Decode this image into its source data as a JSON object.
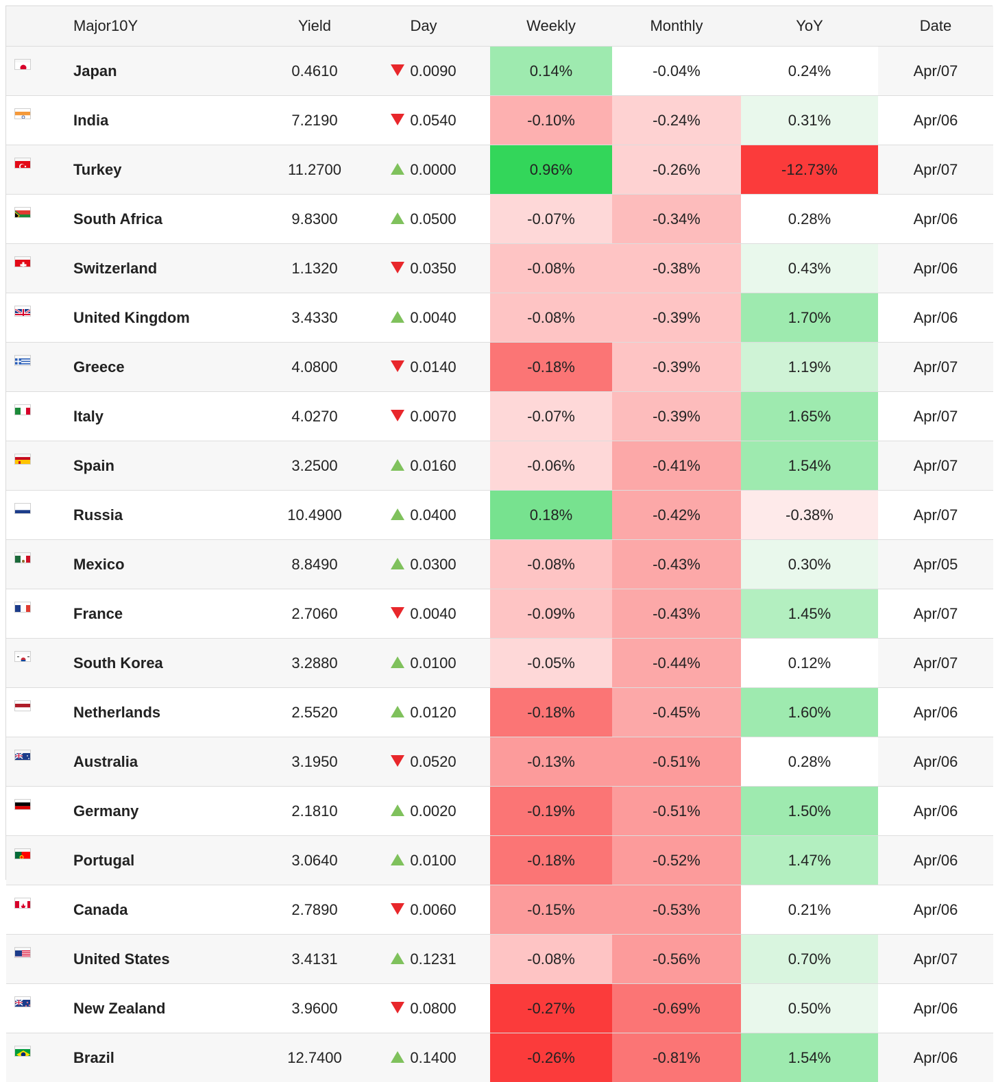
{
  "headers": [
    "",
    "Major10Y",
    "Yield",
    "Day",
    "Weekly",
    "Monthly",
    "YoY",
    "Date"
  ],
  "rows": [
    {
      "flag": "japan-flag-icon",
      "country": "Japan",
      "yield": "0.4610",
      "dir": "down",
      "day": "0.0090",
      "weekly": "0.14%",
      "weekly_bg": "#9eeaaf",
      "monthly": "-0.04%",
      "monthly_bg": "#ffffff",
      "yoy": "0.24%",
      "yoy_bg": "#ffffff"
    },
    {
      "flag": "india-flag-icon",
      "country": "India",
      "yield": "7.2190",
      "dir": "down",
      "day": "0.0540",
      "weekly": "-0.10%",
      "weekly_bg": "#fdb0b0",
      "monthly": "-0.24%",
      "monthly_bg": "#fed2d2",
      "yoy": "0.31%",
      "yoy_bg": "#e9f8ec"
    },
    {
      "flag": "turkey-flag-icon",
      "country": "Turkey",
      "yield": "11.2700",
      "dir": "up",
      "day": "0.0000",
      "weekly": "0.96%",
      "weekly_bg": "#33d65a",
      "monthly": "-0.26%",
      "monthly_bg": "#fed2d2",
      "yoy": "-12.73%",
      "yoy_bg": "#fb3b3b"
    },
    {
      "flag": "south-africa-flag-icon",
      "country": "South Africa",
      "yield": "9.8300",
      "dir": "up",
      "day": "0.0500",
      "weekly": "-0.07%",
      "weekly_bg": "#fed8d8",
      "monthly": "-0.34%",
      "monthly_bg": "#fdbcbc",
      "yoy": "0.28%",
      "yoy_bg": "#ffffff"
    },
    {
      "flag": "switzerland-flag-icon",
      "country": "Switzerland",
      "yield": "1.1320",
      "dir": "down",
      "day": "0.0350",
      "weekly": "-0.08%",
      "weekly_bg": "#fec4c4",
      "monthly": "-0.38%",
      "monthly_bg": "#fec4c4",
      "yoy": "0.43%",
      "yoy_bg": "#e9f8ec"
    },
    {
      "flag": "united-kingdom-flag-icon",
      "country": "United Kingdom",
      "yield": "3.4330",
      "dir": "up",
      "day": "0.0040",
      "weekly": "-0.08%",
      "weekly_bg": "#fec4c4",
      "monthly": "-0.39%",
      "monthly_bg": "#fec4c4",
      "yoy": "1.70%",
      "yoy_bg": "#9eeaaf"
    },
    {
      "flag": "greece-flag-icon",
      "country": "Greece",
      "yield": "4.0800",
      "dir": "down",
      "day": "0.0140",
      "weekly": "-0.18%",
      "weekly_bg": "#fb7575",
      "monthly": "-0.39%",
      "monthly_bg": "#fec4c4",
      "yoy": "1.19%",
      "yoy_bg": "#cff3d6"
    },
    {
      "flag": "italy-flag-icon",
      "country": "Italy",
      "yield": "4.0270",
      "dir": "down",
      "day": "0.0070",
      "weekly": "-0.07%",
      "weekly_bg": "#fed8d8",
      "monthly": "-0.39%",
      "monthly_bg": "#fdbcbc",
      "yoy": "1.65%",
      "yoy_bg": "#9eeaaf"
    },
    {
      "flag": "spain-flag-icon",
      "country": "Spain",
      "yield": "3.2500",
      "dir": "up",
      "day": "0.0160",
      "weekly": "-0.06%",
      "weekly_bg": "#fed8d8",
      "monthly": "-0.41%",
      "monthly_bg": "#fca8a8",
      "yoy": "1.54%",
      "yoy_bg": "#9eeaaf"
    },
    {
      "flag": "russia-flag-icon",
      "country": "Russia",
      "yield": "10.4900",
      "dir": "up",
      "day": "0.0400",
      "weekly": "0.18%",
      "weekly_bg": "#77e28f",
      "monthly": "-0.42%",
      "monthly_bg": "#fca8a8",
      "yoy": "-0.38%",
      "yoy_bg": "#feeaea"
    },
    {
      "flag": "mexico-flag-icon",
      "country": "Mexico",
      "yield": "8.8490",
      "dir": "up",
      "day": "0.0300",
      "weekly": "-0.08%",
      "weekly_bg": "#fec4c4",
      "monthly": "-0.43%",
      "monthly_bg": "#fca8a8",
      "yoy": "0.30%",
      "yoy_bg": "#e9f8ec"
    },
    {
      "flag": "france-flag-icon",
      "country": "France",
      "yield": "2.7060",
      "dir": "down",
      "day": "0.0040",
      "weekly": "-0.09%",
      "weekly_bg": "#fec4c4",
      "monthly": "-0.43%",
      "monthly_bg": "#fca8a8",
      "yoy": "1.45%",
      "yoy_bg": "#b3efc0"
    },
    {
      "flag": "south-korea-flag-icon",
      "country": "South Korea",
      "yield": "3.2880",
      "dir": "up",
      "day": "0.0100",
      "weekly": "-0.05%",
      "weekly_bg": "#fed8d8",
      "monthly": "-0.44%",
      "monthly_bg": "#fca8a8",
      "yoy": "0.12%",
      "yoy_bg": "#ffffff"
    },
    {
      "flag": "netherlands-flag-icon",
      "country": "Netherlands",
      "yield": "2.5520",
      "dir": "up",
      "day": "0.0120",
      "weekly": "-0.18%",
      "weekly_bg": "#fb7575",
      "monthly": "-0.45%",
      "monthly_bg": "#fca8a8",
      "yoy": "1.60%",
      "yoy_bg": "#9eeaaf"
    },
    {
      "flag": "australia-flag-icon",
      "country": "Australia",
      "yield": "3.1950",
      "dir": "down",
      "day": "0.0520",
      "weekly": "-0.13%",
      "weekly_bg": "#fc9b9b",
      "monthly": "-0.51%",
      "monthly_bg": "#fc9b9b",
      "yoy": "0.28%",
      "yoy_bg": "#ffffff"
    },
    {
      "flag": "germany-flag-icon",
      "country": "Germany",
      "yield": "2.1810",
      "dir": "up",
      "day": "0.0020",
      "weekly": "-0.19%",
      "weekly_bg": "#fb7575",
      "monthly": "-0.51%",
      "monthly_bg": "#fc9b9b",
      "yoy": "1.50%",
      "yoy_bg": "#9eeaaf"
    },
    {
      "flag": "portugal-flag-icon",
      "country": "Portugal",
      "yield": "3.0640",
      "dir": "up",
      "day": "0.0100",
      "weekly": "-0.18%",
      "weekly_bg": "#fb7575",
      "monthly": "-0.52%",
      "monthly_bg": "#fc9b9b",
      "yoy": "1.47%",
      "yoy_bg": "#b3efc0"
    },
    {
      "flag": "canada-flag-icon",
      "country": "Canada",
      "yield": "2.7890",
      "dir": "down",
      "day": "0.0060",
      "weekly": "-0.15%",
      "weekly_bg": "#fc9b9b",
      "monthly": "-0.53%",
      "monthly_bg": "#fc9b9b",
      "yoy": "0.21%",
      "yoy_bg": "#ffffff"
    },
    {
      "flag": "united-states-flag-icon",
      "country": "United States",
      "yield": "3.4131",
      "dir": "up",
      "day": "0.1231",
      "weekly": "-0.08%",
      "weekly_bg": "#fec4c4",
      "monthly": "-0.56%",
      "monthly_bg": "#fc9b9b",
      "yoy": "0.70%",
      "yoy_bg": "#d9f5df"
    },
    {
      "flag": "new-zealand-flag-icon",
      "country": "New Zealand",
      "yield": "3.9600",
      "dir": "down",
      "day": "0.0800",
      "weekly": "-0.27%",
      "weekly_bg": "#fb3b3b",
      "monthly": "-0.69%",
      "monthly_bg": "#fb7575",
      "yoy": "0.50%",
      "yoy_bg": "#e9f8ec"
    },
    {
      "flag": "brazil-flag-icon",
      "country": "Brazil",
      "yield": "12.7400",
      "dir": "up",
      "day": "0.1400",
      "weekly": "-0.26%",
      "weekly_bg": "#fb3b3b",
      "monthly": "-0.81%",
      "monthly_bg": "#fb7575",
      "yoy": "1.54%",
      "yoy_bg": "#9eeaaf"
    }
  ]
}
